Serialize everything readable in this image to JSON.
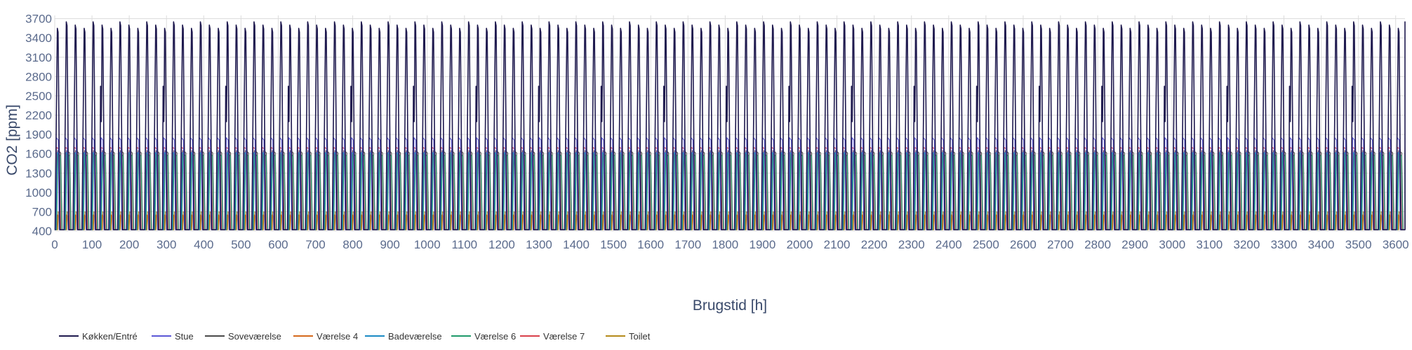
{
  "chart_data": {
    "type": "line",
    "xlabel": "Brugstid [h]",
    "ylabel": "CO2 [ppm]",
    "xlim": [
      0,
      3625
    ],
    "ylim": [
      400,
      3750
    ],
    "xticks": [
      0,
      100,
      200,
      300,
      400,
      500,
      600,
      700,
      800,
      900,
      1000,
      1100,
      1200,
      1300,
      1400,
      1500,
      1600,
      1700,
      1800,
      1900,
      2000,
      2100,
      2200,
      2300,
      2400,
      2500,
      2600,
      2700,
      2800,
      2900,
      3000,
      3100,
      3200,
      3300,
      3400,
      3500,
      3600
    ],
    "yticks": [
      400,
      700,
      1000,
      1300,
      1600,
      1900,
      2200,
      2500,
      2800,
      3100,
      3400,
      3700
    ],
    "grid": true,
    "legend_position": "bottom-left",
    "period_hours": 24,
    "series": [
      {
        "name": "Køkken/Entré",
        "color": "#1f1a4f",
        "baseline": 420,
        "peaks": [
          3550,
          3650,
          3600
        ],
        "secondary_peak": 2650,
        "secondary_trough": 2100
      },
      {
        "name": "Stue",
        "color": "#5b57d6",
        "baseline": 420,
        "peak": 1850
      },
      {
        "name": "Soveværelse",
        "color": "#4a4a4a",
        "baseline": 420,
        "peak": 1650
      },
      {
        "name": "Værelse 4",
        "color": "#d4691b",
        "baseline": 420,
        "peak": 650
      },
      {
        "name": "Badeværelse",
        "color": "#1a8ac4",
        "baseline": 420,
        "peak": 1620
      },
      {
        "name": "Værelse 6",
        "color": "#1e9a6a",
        "baseline": 420,
        "peak": 1600
      },
      {
        "name": "Værelse 7",
        "color": "#d9404a",
        "baseline": 420,
        "peak": 1700
      },
      {
        "name": "Toilet",
        "color": "#b58a1a",
        "baseline": 420,
        "peak": 700
      }
    ]
  }
}
